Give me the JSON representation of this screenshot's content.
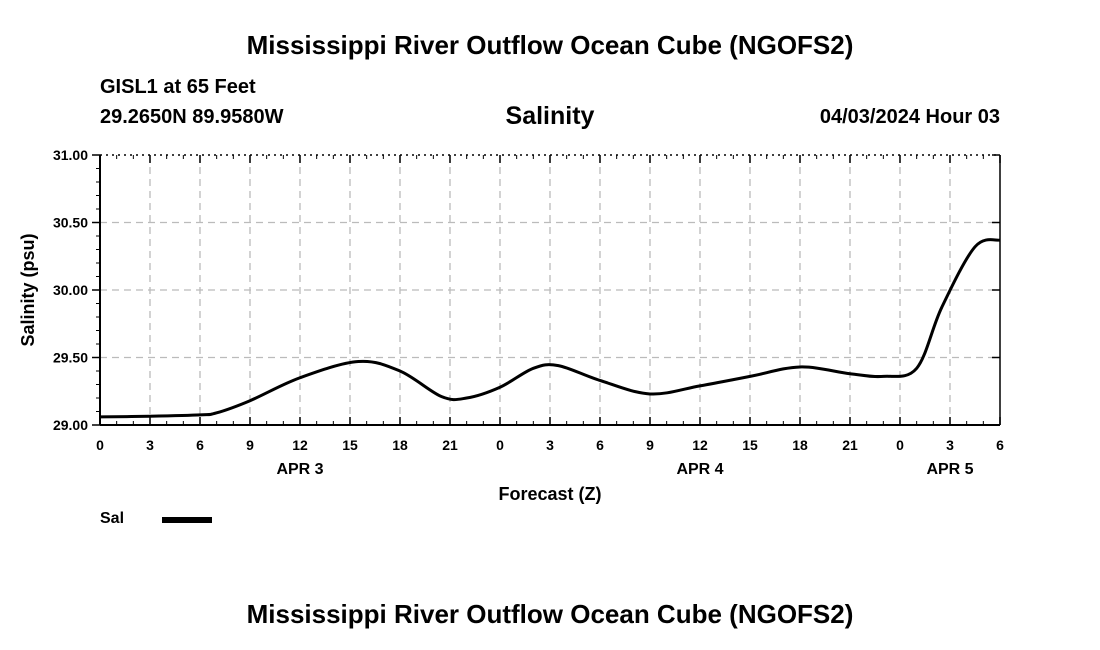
{
  "header": {
    "title": "Mississippi River Outflow Ocean Cube (NGOFS2)",
    "station": "GISL1 at 65 Feet",
    "coords": "29.2650N  89.9580W",
    "subtitle": "Salinity",
    "timestamp": "04/03/2024 Hour 03"
  },
  "footer": {
    "title": "Mississippi River Outflow Ocean Cube (NGOFS2)"
  },
  "legend": {
    "label": "Sal",
    "color": "#000000"
  },
  "chart_data": {
    "type": "line",
    "title": "Salinity",
    "xlabel": "Forecast (Z)",
    "ylabel": "Salinity (psu)",
    "xlim": [
      0,
      54
    ],
    "ylim": [
      29.0,
      31.0
    ],
    "yticks": [
      "29.00",
      "29.50",
      "30.00",
      "30.50",
      "31.00"
    ],
    "ytick_values": [
      29.0,
      29.5,
      30.0,
      30.5,
      31.0
    ],
    "xtick_hours": [
      0,
      3,
      6,
      9,
      12,
      15,
      18,
      21,
      24,
      27,
      30,
      33,
      36,
      39,
      42,
      45,
      48,
      51,
      54
    ],
    "xtick_labels": [
      "0",
      "3",
      "6",
      "9",
      "12",
      "15",
      "18",
      "21",
      "0",
      "3",
      "6",
      "9",
      "12",
      "15",
      "18",
      "21",
      "0",
      "3",
      "6"
    ],
    "day_labels": [
      {
        "hour": 12,
        "label": "APR 3"
      },
      {
        "hour": 36,
        "label": "APR 4"
      },
      {
        "hour": 51,
        "label": "APR 5"
      }
    ],
    "grid": true,
    "series": [
      {
        "name": "Sal",
        "x": [
          0,
          3,
          6,
          7,
          9,
          12,
          15.5,
          18,
          20.5,
          22,
          24,
          26,
          27.5,
          30,
          33,
          36,
          39,
          42,
          45,
          47,
          49,
          50.5,
          52.5,
          54
        ],
        "y": [
          29.06,
          29.065,
          29.075,
          29.09,
          29.18,
          29.35,
          29.47,
          29.4,
          29.21,
          29.2,
          29.28,
          29.42,
          29.44,
          29.33,
          29.23,
          29.29,
          29.36,
          29.43,
          29.38,
          29.36,
          29.42,
          29.87,
          30.32,
          30.37
        ]
      }
    ]
  }
}
